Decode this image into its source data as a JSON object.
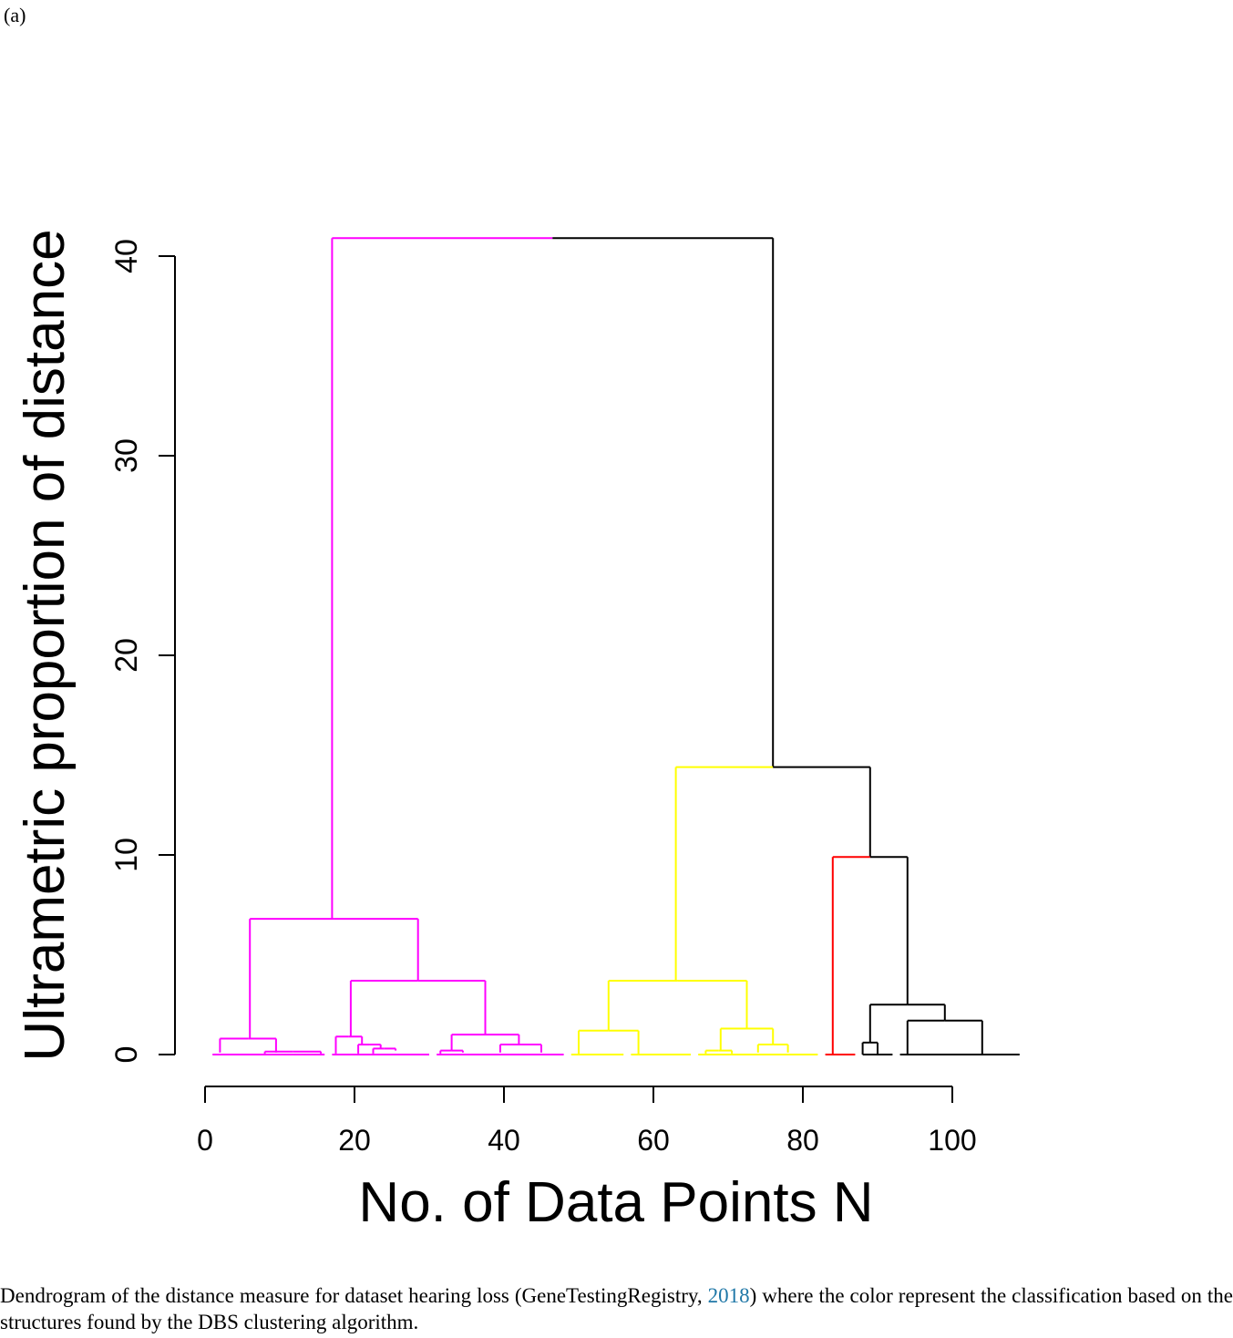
{
  "panel_label": "(a)",
  "caption": {
    "part1": "Dendrogram of the distance measure for dataset hearing loss (GeneTestingRegistry, ",
    "citation_year": "2018",
    "part2": ") where the color represent the classi­fication based on the structures found by the DBS clustering algorithm."
  },
  "chart_data": {
    "type": "dendrogram",
    "title": "",
    "xlabel": "No. of Data Points N",
    "ylabel": "Ultrametric proportion of distance",
    "xlim": [
      0,
      109
    ],
    "ylim": [
      0,
      41
    ],
    "x_ticks": [
      0,
      20,
      40,
      60,
      80,
      100
    ],
    "y_ticks": [
      0,
      10,
      20,
      30,
      40
    ],
    "grid": false,
    "legend": "none",
    "colors": {
      "magenta": "#ff00ff",
      "yellow": "#ffff00",
      "red": "#ff0000",
      "black": "#000000"
    },
    "merges": [
      {
        "x1": 17,
        "y1": 6.8,
        "x2": 76,
        "y2": 14.4,
        "h": 40.9,
        "left_color": "magenta",
        "right_color": "black"
      },
      {
        "x1": 6,
        "y1": 0.8,
        "x2": 28.5,
        "y2": 3.7,
        "h": 6.8,
        "color": "magenta"
      },
      {
        "x1": 19.5,
        "y1": 0.9,
        "x2": 37.5,
        "y2": 1.0,
        "h": 3.7,
        "color": "magenta"
      },
      {
        "x1": 2,
        "y1": 0.1,
        "x2": 9.5,
        "y2": 0.1,
        "h": 0.8,
        "color": "magenta"
      },
      {
        "x1": 8,
        "y1": 0.05,
        "x2": 15.5,
        "y2": 0.05,
        "h": 0.15,
        "color": "magenta"
      },
      {
        "x1": 17.5,
        "y1": 0.05,
        "x2": 21,
        "y2": 0.5,
        "h": 0.9,
        "color": "magenta"
      },
      {
        "x1": 20.5,
        "y1": 0.05,
        "x2": 23.5,
        "y2": 0.3,
        "h": 0.5,
        "color": "magenta"
      },
      {
        "x1": 22.5,
        "y1": 0.05,
        "x2": 25.5,
        "y2": 0.2,
        "h": 0.3,
        "color": "magenta"
      },
      {
        "x1": 33,
        "y1": 0.2,
        "x2": 42,
        "y2": 0.5,
        "h": 1.0,
        "color": "magenta"
      },
      {
        "x1": 31.5,
        "y1": 0.05,
        "x2": 34.5,
        "y2": 0.1,
        "h": 0.2,
        "color": "magenta"
      },
      {
        "x1": 39.5,
        "y1": 0.1,
        "x2": 45,
        "y2": 0.1,
        "h": 0.5,
        "color": "magenta"
      },
      {
        "x1": 54,
        "y1": 1.2,
        "x2": 72.5,
        "y2": 1.3,
        "h": 3.7,
        "color": "yellow"
      },
      {
        "x1": 50,
        "y1": 0.0,
        "x2": 58,
        "y2": 0.0,
        "h": 1.2,
        "color": "yellow"
      },
      {
        "x1": 69,
        "y1": 0.2,
        "x2": 76,
        "y2": 0.5,
        "h": 1.3,
        "color": "yellow"
      },
      {
        "x1": 67,
        "y1": 0.05,
        "x2": 70.5,
        "y2": 0.05,
        "h": 0.2,
        "color": "yellow"
      },
      {
        "x1": 74,
        "y1": 0.1,
        "x2": 78,
        "y2": 0.1,
        "h": 0.5,
        "color": "yellow"
      },
      {
        "x1": 63,
        "y1": 3.7,
        "x2": 89,
        "y2": 9.9,
        "h": 14.4,
        "left_color": "yellow",
        "right_color": "black"
      },
      {
        "x1": 84,
        "y1": 0.0,
        "x2": 94,
        "y2": 2.5,
        "h": 9.9,
        "left_color": "red",
        "right_color": "black"
      },
      {
        "x1": 89,
        "y1": 0.6,
        "x2": 99,
        "y2": 1.7,
        "h": 2.5,
        "color": "black"
      },
      {
        "x1": 88,
        "y1": 0.0,
        "x2": 90,
        "y2": 0.0,
        "h": 0.6,
        "color": "black"
      },
      {
        "x1": 94,
        "y1": 0.0,
        "x2": 104,
        "y2": 0.0,
        "h": 1.7,
        "color": "black"
      }
    ],
    "leaf_segments": [
      {
        "x1": 1,
        "x2": 9,
        "color": "magenta"
      },
      {
        "x1": 8,
        "x2": 16,
        "color": "magenta"
      },
      {
        "x1": 17,
        "x2": 30,
        "color": "magenta"
      },
      {
        "x1": 31,
        "x2": 48,
        "color": "magenta"
      },
      {
        "x1": 49,
        "x2": 56,
        "color": "yellow"
      },
      {
        "x1": 57,
        "x2": 65,
        "color": "yellow"
      },
      {
        "x1": 66,
        "x2": 82,
        "color": "yellow"
      },
      {
        "x1": 83,
        "x2": 87,
        "color": "red"
      },
      {
        "x1": 88,
        "x2": 92,
        "color": "black"
      },
      {
        "x1": 93,
        "x2": 109,
        "color": "black"
      }
    ]
  }
}
